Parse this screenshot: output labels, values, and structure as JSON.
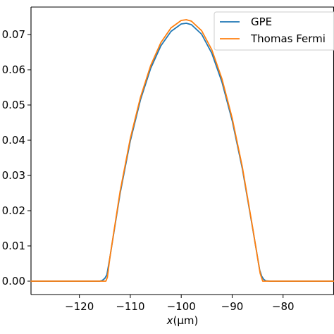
{
  "chart_data": {
    "type": "line",
    "xlabel_italic": "x",
    "xlabel_unit": "(μm)",
    "ylabel": "",
    "title": "",
    "xlim": [
      -129.5,
      -70
    ],
    "ylim": [
      -0.0038,
      0.0778
    ],
    "x_ticks": [
      -120,
      -110,
      -100,
      -90,
      -80
    ],
    "y_ticks": [
      0.0,
      0.01,
      0.02,
      0.03,
      0.04,
      0.05,
      0.06,
      0.07
    ],
    "x_tick_labels": [
      "−120",
      "−110",
      "−100",
      "−90",
      "−80"
    ],
    "y_tick_labels": [
      "0.00",
      "0.01",
      "0.02",
      "0.03",
      "0.04",
      "0.05",
      "0.06",
      "0.07"
    ],
    "legend_position": "top-right",
    "grid": false,
    "series": [
      {
        "name": "GPE",
        "color": "#1f77b4",
        "x": [
          -129.5,
          -116,
          -115.5,
          -115,
          -114.6,
          -114,
          -112,
          -110,
          -108,
          -106,
          -104,
          -102,
          -100,
          -99,
          -98,
          -96,
          -94,
          -92,
          -90,
          -88,
          -86,
          -84.6,
          -84.2,
          -83.8,
          -83.4,
          -82.5,
          -70
        ],
        "y": [
          0.0,
          0.0,
          0.0002,
          0.0008,
          0.0018,
          0.0068,
          0.0249,
          0.0398,
          0.0515,
          0.0604,
          0.0668,
          0.0709,
          0.073,
          0.0732,
          0.0728,
          0.0701,
          0.0647,
          0.0565,
          0.0456,
          0.0319,
          0.0152,
          0.0032,
          0.0014,
          0.0005,
          0.0001,
          0.0,
          0.0
        ]
      },
      {
        "name": "Thomas Fermi",
        "color": "#ff7f0e",
        "x": [
          -129.5,
          -114.8,
          -114.5,
          -114,
          -112,
          -110,
          -108,
          -106,
          -104,
          -102,
          -100,
          -99,
          -98,
          -96,
          -94,
          -92,
          -90,
          -88,
          -86,
          -84.5,
          -84,
          -83.8,
          -70
        ],
        "y": [
          0.0,
          0.0,
          0.0011,
          0.0068,
          0.0255,
          0.0405,
          0.0522,
          0.0612,
          0.0677,
          0.0719,
          0.074,
          0.0742,
          0.0738,
          0.0711,
          0.0657,
          0.0574,
          0.0463,
          0.0324,
          0.0154,
          0.0022,
          0.0,
          0.0,
          0.0
        ]
      }
    ]
  }
}
